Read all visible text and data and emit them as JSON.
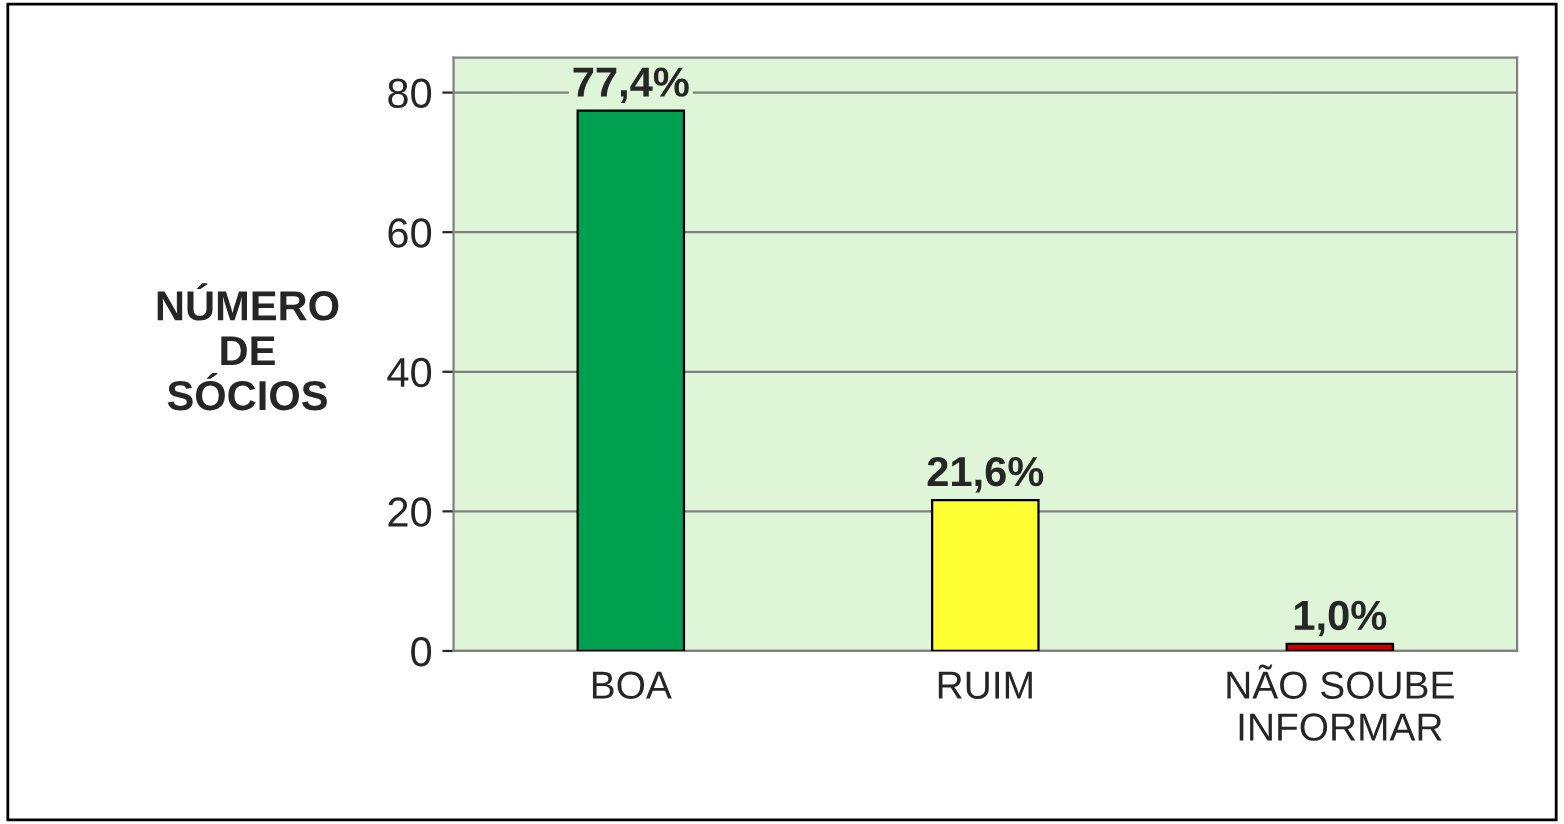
{
  "chart_data": {
    "type": "bar",
    "ylabel": "NÚMERO\nDE\nSÓCIOS",
    "categories": [
      "BOA",
      "RUIM",
      "NÃO SOUBE\nINFORMAR"
    ],
    "values": [
      77.4,
      21.6,
      1.0
    ],
    "colors": [
      "#00a050",
      "#ffff33",
      "#cc0000"
    ],
    "value_labels": [
      "77,4%",
      "21,6%",
      "1,0%"
    ],
    "ylim": [
      0,
      85
    ],
    "yticks": [
      0,
      20,
      40,
      60,
      80
    ],
    "grid": "y"
  }
}
